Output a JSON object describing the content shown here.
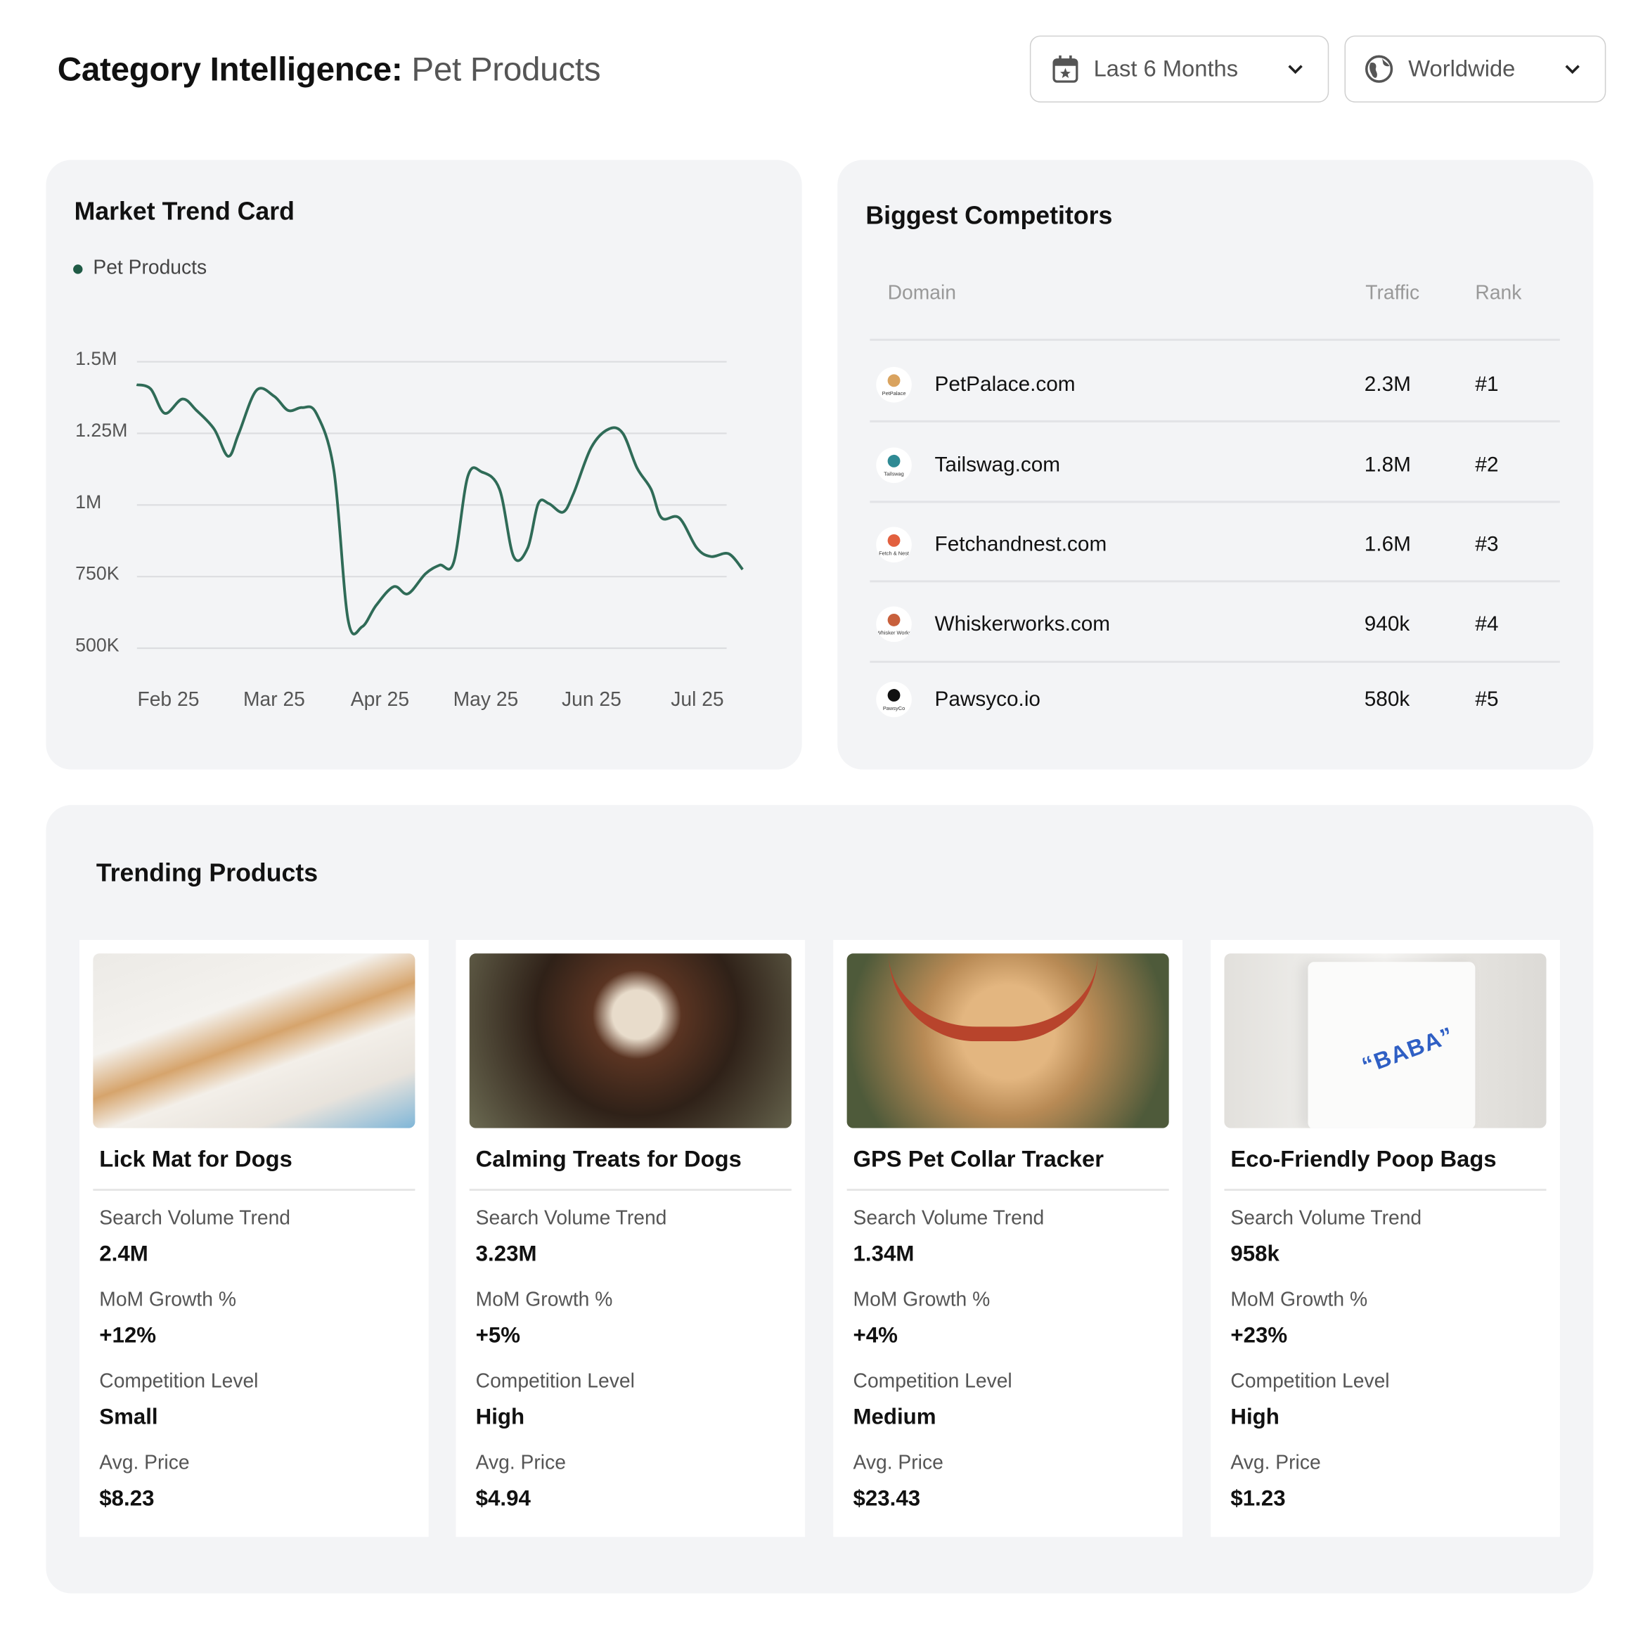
{
  "header": {
    "title": "Category Intelligence:",
    "category": "Pet Products",
    "date_filter": {
      "icon": "calendar-icon",
      "value": "Last 6 Months"
    },
    "region_filter": {
      "icon": "globe-icon",
      "value": "Worldwide"
    }
  },
  "market_trend": {
    "title": "Market Trend Card",
    "legend": "Pet Products"
  },
  "chart_data": {
    "type": "line",
    "title": "",
    "xlabel": "",
    "ylabel": "",
    "color": "#2f6b57",
    "grid": true,
    "legend_position": "top-left",
    "x_tick_labels": [
      "Feb 25",
      "Mar 25",
      "Apr 25",
      "May 25",
      "Jun 25",
      "Jul 25"
    ],
    "y_tick_labels": [
      "1.5M",
      "1.25M",
      "1M",
      "750K",
      "500K"
    ],
    "y_ticks": [
      1500000,
      1250000,
      1000000,
      750000,
      500000
    ],
    "ylim": [
      500000,
      1500000
    ],
    "series": [
      {
        "name": "Pet Products",
        "points": [
          [
            "2025-01-23",
            1420000
          ],
          [
            "2025-01-27",
            1405000
          ],
          [
            "2025-01-31",
            1320000
          ],
          [
            "2025-02-05",
            1370000
          ],
          [
            "2025-02-09",
            1330000
          ],
          [
            "2025-02-14",
            1265000
          ],
          [
            "2025-02-18",
            1170000
          ],
          [
            "2025-02-21",
            1250000
          ],
          [
            "2025-02-26",
            1400000
          ],
          [
            "2025-03-03",
            1380000
          ],
          [
            "2025-03-07",
            1330000
          ],
          [
            "2025-03-11",
            1340000
          ],
          [
            "2025-03-15",
            1320000
          ],
          [
            "2025-03-20",
            1120000
          ],
          [
            "2025-03-24",
            600000
          ],
          [
            "2025-03-28",
            575000
          ],
          [
            "2025-04-01",
            650000
          ],
          [
            "2025-04-06",
            715000
          ],
          [
            "2025-04-10",
            690000
          ],
          [
            "2025-04-15",
            760000
          ],
          [
            "2025-04-19",
            790000
          ],
          [
            "2025-04-23",
            800000
          ],
          [
            "2025-04-27",
            1100000
          ],
          [
            "2025-05-01",
            1115000
          ],
          [
            "2025-05-06",
            1055000
          ],
          [
            "2025-05-10",
            820000
          ],
          [
            "2025-05-14",
            850000
          ],
          [
            "2025-05-17",
            1005000
          ],
          [
            "2025-05-20",
            1005000
          ],
          [
            "2025-05-24",
            975000
          ],
          [
            "2025-05-27",
            1040000
          ],
          [
            "2025-06-01",
            1200000
          ],
          [
            "2025-06-06",
            1265000
          ],
          [
            "2025-06-10",
            1250000
          ],
          [
            "2025-06-14",
            1130000
          ],
          [
            "2025-06-18",
            1055000
          ],
          [
            "2025-06-21",
            955000
          ],
          [
            "2025-06-26",
            955000
          ],
          [
            "2025-07-01",
            850000
          ],
          [
            "2025-07-05",
            820000
          ],
          [
            "2025-07-10",
            830000
          ],
          [
            "2025-07-14",
            775000
          ]
        ]
      }
    ]
  },
  "competitors": {
    "title": "Biggest Competitors",
    "columns": [
      "Domain",
      "Traffic",
      "Rank"
    ],
    "rows": [
      {
        "domain": "PetPalace.com",
        "traffic": "2.3M",
        "rank": "#1",
        "logo_text": "PetPalace",
        "logo_color": "#d9a35f"
      },
      {
        "domain": "Tailswag.com",
        "traffic": "1.8M",
        "rank": "#2",
        "logo_text": "Tailswag",
        "logo_color": "#2f8a94"
      },
      {
        "domain": "Fetchandnest.com",
        "traffic": "1.6M",
        "rank": "#3",
        "logo_text": "Fetch & Nest",
        "logo_color": "#e2603f"
      },
      {
        "domain": "Whiskerworks.com",
        "traffic": "940k",
        "rank": "#4",
        "logo_text": "Whisker Works",
        "logo_color": "#c8603c"
      },
      {
        "domain": "Pawsyco.io",
        "traffic": "580k",
        "rank": "#5",
        "logo_text": "PawsyCo",
        "logo_color": "#111111"
      }
    ]
  },
  "trending": {
    "title": "Trending Products",
    "labels": {
      "volume": "Search Volume Trend",
      "growth": "MoM Growth %",
      "competition": "Competition Level",
      "price": "Avg. Price"
    },
    "products": [
      {
        "name": "Lick Mat for Dogs",
        "volume": "2.4M",
        "growth": "+12%",
        "competition": "Small",
        "price": "$8.23"
      },
      {
        "name": "Calming Treats for Dogs",
        "volume": "3.23M",
        "growth": "+5%",
        "competition": "High",
        "price": "$4.94"
      },
      {
        "name": "GPS Pet Collar Tracker",
        "volume": "1.34M",
        "growth": "+4%",
        "competition": "Medium",
        "price": "$23.43"
      },
      {
        "name": "Eco-Friendly Poop Bags",
        "volume": "958k",
        "growth": "+23%",
        "competition": "High",
        "price": "$1.23",
        "image_text": "“BABA”"
      }
    ]
  }
}
